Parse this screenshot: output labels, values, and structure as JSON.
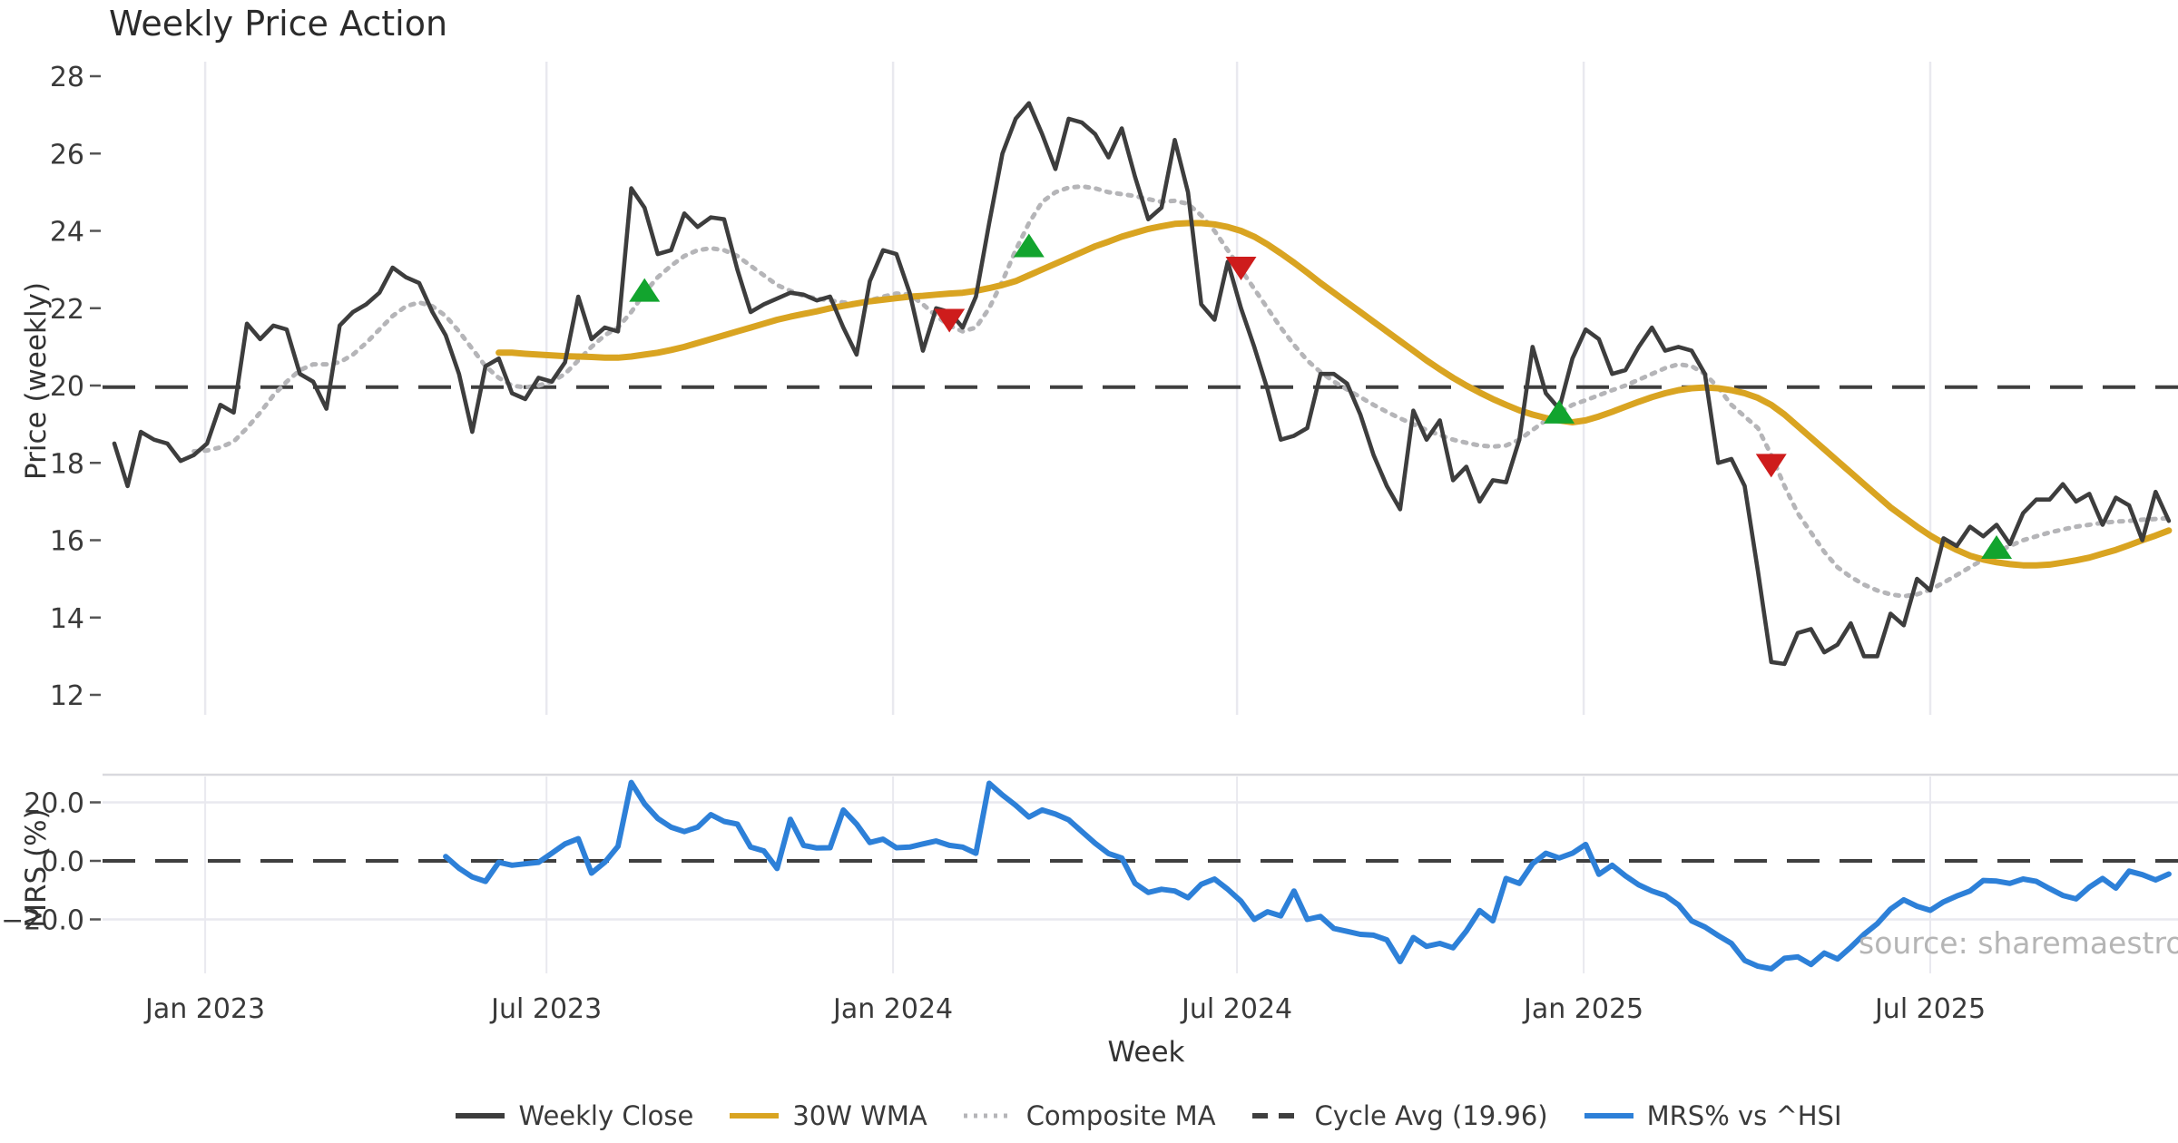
{
  "title": "Weekly Price Action",
  "source": "source: sharemaestro.com",
  "colors": {
    "weekly_close": "#3d3d3d",
    "wma_30w": "#d9a421",
    "composite_ma": "#b5b5b8",
    "cycle_avg": "#3f3f3f",
    "mrs": "#2d80d8",
    "buy_marker": "#12a42e",
    "sell_marker": "#ce1c1c",
    "grid": "#e9e9ef",
    "panel_border": "#d9d9de",
    "tick_text": "#3a3a3a",
    "source_text": "#b5b5b5"
  },
  "legend": {
    "items": [
      {
        "label": "Weekly Close",
        "color": "#3d3d3d",
        "style": "solid"
      },
      {
        "label": "30W WMA",
        "color": "#d9a421",
        "style": "solid"
      },
      {
        "label": "Composite MA",
        "color": "#b5b5b8",
        "style": "dotted"
      },
      {
        "label": "Cycle Avg (19.96)",
        "color": "#3f3f3f",
        "style": "dashed"
      },
      {
        "label": "MRS% vs ^HSI",
        "color": "#2d80d8",
        "style": "solid"
      }
    ]
  },
  "chart_data": {
    "type": "line",
    "title": "Weekly Price Action",
    "xlabel": "Week",
    "x_unit": "week_index_from_2022-11",
    "weeks_total": 156,
    "x_ticks": [
      {
        "week": 6.85,
        "label": "Jan 2023"
      },
      {
        "week": 32.6,
        "label": "Jul 2023"
      },
      {
        "week": 58.75,
        "label": "Jan 2024"
      },
      {
        "week": 84.7,
        "label": "Jul 2024"
      },
      {
        "week": 110.85,
        "label": "Jan 2025"
      },
      {
        "week": 137.0,
        "label": "Jul 2025"
      }
    ],
    "panels": [
      {
        "name": "price",
        "ylabel": "Price (weekly)",
        "ylim": [
          12,
          28
        ],
        "yticks": [
          28,
          26,
          24,
          22,
          20,
          18,
          16,
          14,
          12
        ],
        "grid": "vertical",
        "cycle_avg_value": 19.96,
        "series": [
          {
            "name": "Weekly Close",
            "style": "solid",
            "color": "#3d3d3d",
            "start_week": 0,
            "values": [
              18.5,
              17.4,
              18.8,
              18.6,
              18.5,
              18.05,
              18.2,
              18.5,
              19.5,
              19.3,
              21.6,
              21.2,
              21.55,
              21.45,
              20.3,
              20.1,
              19.4,
              21.55,
              21.9,
              22.1,
              22.4,
              23.05,
              22.8,
              22.65,
              21.9,
              21.3,
              20.3,
              18.8,
              20.5,
              20.7,
              19.8,
              19.65,
              20.2,
              20.1,
              20.6,
              22.3,
              21.2,
              21.5,
              21.4,
              25.1,
              24.6,
              23.4,
              23.5,
              24.45,
              24.1,
              24.35,
              24.3,
              23.0,
              21.9,
              22.1,
              22.25,
              22.4,
              22.35,
              22.2,
              22.3,
              21.5,
              20.8,
              22.7,
              23.5,
              23.4,
              22.4,
              20.9,
              22.0,
              21.9,
              21.5,
              22.3,
              24.2,
              26.0,
              26.9,
              27.3,
              26.5,
              25.6,
              26.9,
              26.8,
              26.5,
              25.9,
              26.65,
              25.4,
              24.3,
              24.6,
              26.35,
              25.0,
              22.1,
              21.7,
              23.2,
              22.0,
              21.0,
              19.9,
              18.6,
              18.7,
              18.9,
              20.3,
              20.3,
              20.05,
              19.25,
              18.2,
              17.4,
              16.8,
              19.35,
              18.6,
              19.1,
              17.55,
              17.9,
              17.0,
              17.55,
              17.5,
              18.6,
              21.0,
              19.8,
              19.4,
              20.7,
              21.45,
              21.2,
              20.3,
              20.4,
              21.0,
              21.5,
              20.9,
              21.0,
              20.9,
              20.3,
              18.0,
              18.1,
              17.4,
              15.2,
              12.85,
              12.8,
              13.6,
              13.7,
              13.1,
              13.3,
              13.85,
              13.0,
              13.0,
              14.1,
              13.8,
              15.0,
              14.7,
              16.05,
              15.85,
              16.35,
              16.1,
              16.4,
              15.9,
              16.7,
              17.05,
              17.05,
              17.45,
              17.0,
              17.2,
              16.4,
              17.1,
              16.9,
              16.0,
              17.25,
              16.5
            ]
          },
          {
            "name": "30W WMA",
            "style": "solid",
            "color": "#d9a421",
            "start_week": 29,
            "values": [
              20.85,
              20.85,
              20.82,
              20.8,
              20.78,
              20.76,
              20.75,
              20.74,
              20.72,
              20.72,
              20.75,
              20.8,
              20.85,
              20.92,
              21.0,
              21.1,
              21.2,
              21.3,
              21.4,
              21.5,
              21.6,
              21.7,
              21.78,
              21.85,
              21.92,
              22.0,
              22.06,
              22.12,
              22.18,
              22.22,
              22.26,
              22.3,
              22.32,
              22.35,
              22.38,
              22.4,
              22.45,
              22.52,
              22.6,
              22.7,
              22.85,
              23.0,
              23.15,
              23.3,
              23.45,
              23.6,
              23.72,
              23.85,
              23.95,
              24.05,
              24.12,
              24.18,
              24.2,
              24.2,
              24.17,
              24.1,
              24.0,
              23.85,
              23.65,
              23.42,
              23.18,
              22.92,
              22.65,
              22.4,
              22.15,
              21.9,
              21.65,
              21.4,
              21.15,
              20.9,
              20.65,
              20.42,
              20.2,
              20.0,
              19.82,
              19.65,
              19.5,
              19.36,
              19.25,
              19.16,
              19.1,
              19.05,
              19.1,
              19.2,
              19.32,
              19.45,
              19.58,
              19.7,
              19.8,
              19.88,
              19.93,
              19.95,
              19.93,
              19.88,
              19.8,
              19.68,
              19.5,
              19.25,
              18.95,
              18.65,
              18.35,
              18.05,
              17.75,
              17.45,
              17.15,
              16.85,
              16.6,
              16.35,
              16.12,
              15.92,
              15.75,
              15.6,
              15.5,
              15.43,
              15.38,
              15.35,
              15.35,
              15.37,
              15.42,
              15.48,
              15.55,
              15.65,
              15.75,
              15.87,
              16.0,
              16.12,
              16.25
            ]
          },
          {
            "name": "Composite MA",
            "style": "dotted",
            "color": "#b5b5b8",
            "start_week": 6,
            "values": [
              18.3,
              18.32,
              18.4,
              18.55,
              18.9,
              19.3,
              19.75,
              20.1,
              20.4,
              20.55,
              20.55,
              20.6,
              20.8,
              21.1,
              21.45,
              21.8,
              22.05,
              22.15,
              22.05,
              21.8,
              21.4,
              20.95,
              20.5,
              20.2,
              20.0,
              19.95,
              20.0,
              20.1,
              20.3,
              20.65,
              21.0,
              21.3,
              21.5,
              21.9,
              22.4,
              22.8,
              23.1,
              23.35,
              23.5,
              23.55,
              23.5,
              23.35,
              23.1,
              22.85,
              22.6,
              22.45,
              22.32,
              22.25,
              22.2,
              22.15,
              22.12,
              22.2,
              22.3,
              22.38,
              22.35,
              22.1,
              21.8,
              21.55,
              21.4,
              21.5,
              22.0,
              22.7,
              23.5,
              24.2,
              24.75,
              25.0,
              25.12,
              25.15,
              25.1,
              25.0,
              24.95,
              24.9,
              24.82,
              24.75,
              24.78,
              24.7,
              24.4,
              24.0,
              23.5,
              23.0,
              22.5,
              22.0,
              21.5,
              21.05,
              20.65,
              20.35,
              20.1,
              19.9,
              19.7,
              19.5,
              19.32,
              19.15,
              19.0,
              18.85,
              18.72,
              18.6,
              18.52,
              18.45,
              18.42,
              18.45,
              18.6,
              18.85,
              19.1,
              19.3,
              19.5,
              19.62,
              19.75,
              19.88,
              20.0,
              20.15,
              20.3,
              20.45,
              20.55,
              20.5,
              20.3,
              19.95,
              19.5,
              19.2,
              18.9,
              18.2,
              17.4,
              16.7,
              16.2,
              15.7,
              15.3,
              15.05,
              14.85,
              14.7,
              14.6,
              14.55,
              14.6,
              14.72,
              14.9,
              15.1,
              15.3,
              15.5,
              15.7,
              15.85,
              16.0,
              16.1,
              16.2,
              16.28,
              16.35,
              16.4,
              16.45,
              16.48,
              16.5,
              16.53,
              16.55,
              16.57
            ]
          },
          {
            "name": "Cycle Avg (19.96)",
            "style": "dashed",
            "color": "#3f3f3f",
            "constant": 19.96
          }
        ],
        "markers": [
          {
            "week": 40,
            "price": 22.45,
            "signal": "buy"
          },
          {
            "week": 63,
            "price": 21.7,
            "signal": "sell"
          },
          {
            "week": 69,
            "price": 23.6,
            "signal": "buy"
          },
          {
            "week": 85,
            "price": 23.05,
            "signal": "sell"
          },
          {
            "week": 109,
            "price": 19.3,
            "signal": "buy"
          },
          {
            "week": 125,
            "price": 17.95,
            "signal": "sell"
          },
          {
            "week": 142,
            "price": 15.8,
            "signal": "buy"
          }
        ]
      },
      {
        "name": "mrs",
        "ylabel": "MRS (%)",
        "ylim": [
          -38,
          31
        ],
        "yticks": [
          {
            "v": 20,
            "label": "20.0"
          },
          {
            "v": 0,
            "label": "0.0"
          },
          {
            "v": -20,
            "label": "−20.0"
          }
        ],
        "zero_line": 0,
        "series": [
          {
            "name": "MRS% vs ^HSI",
            "style": "solid",
            "color": "#2d80d8",
            "start_week": 25,
            "values": [
              1.5,
              -2.5,
              -5.5,
              -7.0,
              -0.5,
              -1.5,
              -1.0,
              -0.5,
              2.6,
              5.8,
              7.6,
              -4.2,
              -0.5,
              5.0,
              26.8,
              19.5,
              14.5,
              11.5,
              10.0,
              11.5,
              15.8,
              13.5,
              12.6,
              4.7,
              3.4,
              -2.6,
              14.2,
              5.3,
              4.4,
              4.5,
              17.4,
              12.6,
              6.3,
              7.4,
              4.5,
              4.7,
              5.8,
              6.8,
              5.3,
              4.7,
              2.6,
              26.5,
              22.5,
              19.0,
              15.0,
              17.4,
              16.0,
              14.0,
              10.0,
              6.0,
              2.5,
              1.0,
              -7.7,
              -10.8,
              -9.7,
              -10.3,
              -12.6,
              -8.0,
              -6.2,
              -9.7,
              -13.8,
              -20.0,
              -17.4,
              -18.8,
              -10.3,
              -20.0,
              -19.0,
              -23.1,
              -24.1,
              -25.1,
              -25.4,
              -27.0,
              -34.4,
              -26.2,
              -29.2,
              -28.2,
              -29.7,
              -24.0,
              -17.0,
              -20.5,
              -6.0,
              -7.7,
              -1.0,
              2.6,
              1.0,
              2.6,
              5.6,
              -4.6,
              -1.5,
              -5.1,
              -8.2,
              -10.3,
              -11.8,
              -15.0,
              -20.5,
              -22.6,
              -25.5,
              -28.2,
              -34.0,
              -36.0,
              -36.9,
              -33.3,
              -32.8,
              -35.4,
              -31.5,
              -33.5,
              -29.5,
              -25.1,
              -21.5,
              -16.5,
              -13.3,
              -15.5,
              -16.9,
              -14.0,
              -12.0,
              -10.3,
              -6.7,
              -6.9,
              -7.7,
              -6.2,
              -7.0,
              -9.5,
              -11.8,
              -13.0,
              -9.0,
              -6.0,
              -9.3,
              -3.5,
              -4.7,
              -6.5,
              -4.5
            ]
          }
        ]
      }
    ]
  }
}
